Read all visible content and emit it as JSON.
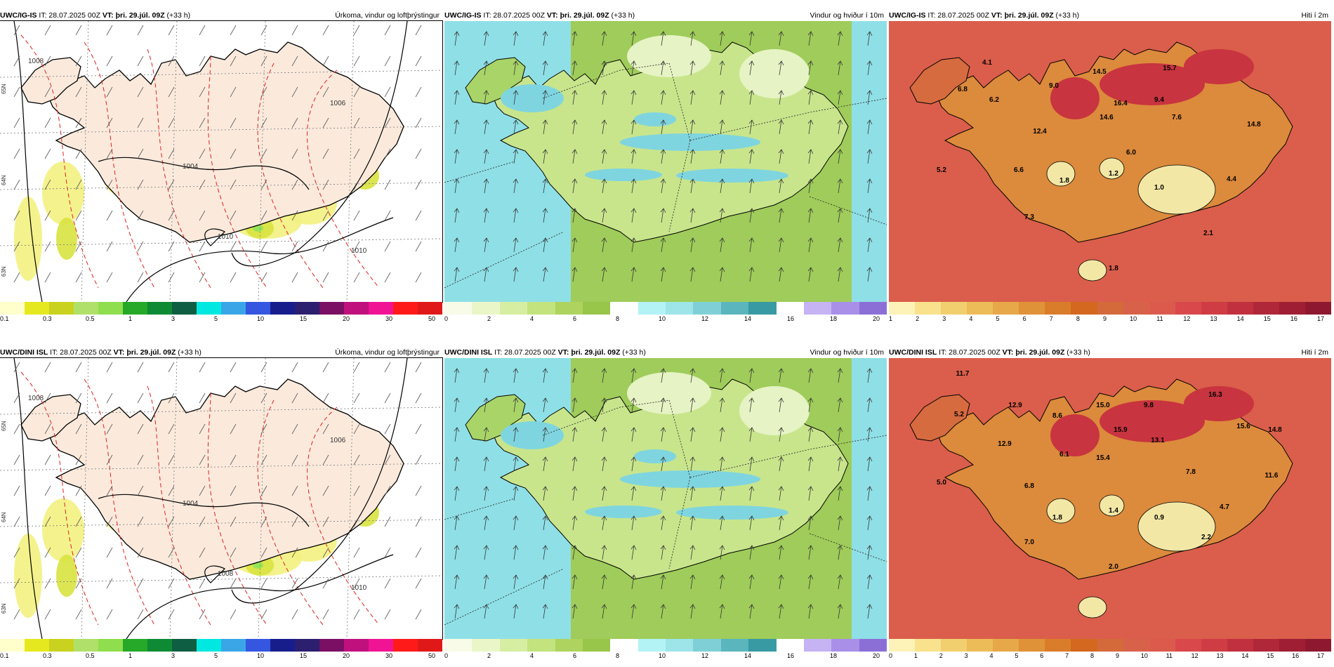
{
  "panels": [
    {
      "model": "UWC/IG-IS",
      "it": "IT: 28.07.2025 00Z",
      "vt_label": "VT:",
      "vt": "þri. 29.júl. 09Z",
      "lead": "(+33 h)",
      "title": "Úrkoma, vindur og loftþrýstingur",
      "type": "precip",
      "legend_colors": [
        "#ffffcc",
        "#e5e81f",
        "#c9d21e",
        "#b1e06a",
        "#8fde4e",
        "#26a828",
        "#0e8a34",
        "#0d5e42",
        "#00e8e0",
        "#3aa6e8",
        "#3456e0",
        "#171e8c",
        "#2c1f6f",
        "#7a0f63",
        "#c0107e",
        "#f01494",
        "#ff1a1a",
        "#e01818"
      ],
      "legend_labels": [
        "0.1",
        "0.3",
        "0.5",
        "1",
        "3",
        "5",
        "10",
        "15",
        "20",
        "30",
        "50"
      ],
      "isobars": [
        "1008",
        "1006",
        "1004",
        "1010",
        "1010"
      ],
      "lat_labels": [
        "65N",
        "64N",
        "63N"
      ]
    },
    {
      "model": "UWC/IG-IS",
      "it": "IT: 28.07.2025 00Z",
      "vt_label": "VT:",
      "vt": "þri. 29.júl. 09Z",
      "lead": "(+33 h)",
      "title": "Vindur og hviður í 10m",
      "type": "wind",
      "legend_colors": [
        "#f7fbe8",
        "#eaf6c8",
        "#d6eea1",
        "#c2e37e",
        "#aed45f",
        "#98c64a",
        "#ffffff",
        "#b3f3f6",
        "#9ee5ea",
        "#7fd0d6",
        "#5bb5bd",
        "#389aa3",
        "#ffffff",
        "#c5b3f3",
        "#a98fe8",
        "#8b6fd7"
      ],
      "legend_labels": [
        "0",
        "2",
        "4",
        "6",
        "8",
        "10",
        "12",
        "14",
        "16",
        "18",
        "20"
      ]
    },
    {
      "model": "UWC/IG-IS",
      "it": "IT: 28.07.2025 00Z",
      "vt_label": "VT:",
      "vt": "þri. 29.júl. 09Z",
      "lead": "(+33 h)",
      "title": "Hiti í 2m",
      "type": "temp",
      "legend_colors": [
        "#fdf3b8",
        "#f8e28d",
        "#f1cf6e",
        "#ecbc58",
        "#e6a848",
        "#e09238",
        "#da7d2a",
        "#d4681f",
        "#d46a3a",
        "#d86249",
        "#dc5a4c",
        "#d9484a",
        "#cf3c44",
        "#c1303f",
        "#b02739",
        "#a01e34",
        "#8d1830"
      ],
      "legend_labels": [
        "1",
        "2",
        "3",
        "4",
        "5",
        "6",
        "7",
        "8",
        "9",
        "10",
        "11",
        "12",
        "13",
        "14",
        "15",
        "16",
        "17"
      ],
      "labels": [
        "6.8",
        "4.1",
        "6.2",
        "9.0",
        "14.5",
        "15.7",
        "16.4",
        "9.4",
        "14.6",
        "12.4",
        "7.6",
        "14.8",
        "6.0",
        "5.2",
        "6.6",
        "1.8",
        "1.2",
        "1.0",
        "4.4",
        "7.3",
        "2.1",
        "1.8"
      ]
    },
    {
      "model": "UWC/DINI ISL",
      "it": "IT: 28.07.2025 00Z",
      "vt_label": "VT:",
      "vt": "þri. 29.júl. 09Z",
      "lead": "(+33 h)",
      "title": "Úrkoma, vindur og loftþrýstingur",
      "type": "precip",
      "legend_colors": [
        "#ffffcc",
        "#e5e81f",
        "#c9d21e",
        "#b1e06a",
        "#8fde4e",
        "#26a828",
        "#0e8a34",
        "#0d5e42",
        "#00e8e0",
        "#3aa6e8",
        "#3456e0",
        "#171e8c",
        "#2c1f6f",
        "#7a0f63",
        "#c0107e",
        "#f01494",
        "#ff1a1a",
        "#e01818"
      ],
      "legend_labels": [
        "0.1",
        "0.3",
        "0.5",
        "1",
        "3",
        "5",
        "10",
        "15",
        "20",
        "30",
        "50"
      ],
      "isobars": [
        "1008",
        "1006",
        "1004",
        "1010",
        "1008"
      ],
      "lat_labels": [
        "65N",
        "64N",
        "63N"
      ]
    },
    {
      "model": "UWC/DINI ISL",
      "it": "IT: 28.07.2025 00Z",
      "vt_label": "VT:",
      "vt": "þri. 29.júl. 09Z",
      "lead": "(+33 h)",
      "title": "Vindur og hviður í 10m",
      "type": "wind",
      "legend_colors": [
        "#f7fbe8",
        "#eaf6c8",
        "#d6eea1",
        "#c2e37e",
        "#aed45f",
        "#98c64a",
        "#ffffff",
        "#b3f3f6",
        "#9ee5ea",
        "#7fd0d6",
        "#5bb5bd",
        "#389aa3",
        "#ffffff",
        "#c5b3f3",
        "#a98fe8",
        "#8b6fd7"
      ],
      "legend_labels": [
        "0",
        "2",
        "4",
        "6",
        "8",
        "10",
        "12",
        "14",
        "16",
        "18",
        "20"
      ]
    },
    {
      "model": "UWC/DINI ISL",
      "it": "IT: 28.07.2025 00Z",
      "vt_label": "VT:",
      "vt": "þri. 29.júl. 09Z",
      "lead": "(+33 h)",
      "title": "Hiti í 2m",
      "type": "temp",
      "legend_colors": [
        "#fdf3b8",
        "#f8e28d",
        "#f1cf6e",
        "#ecbc58",
        "#e6a848",
        "#e09238",
        "#da7d2a",
        "#d4681f",
        "#d46a3a",
        "#d86249",
        "#dc5a4c",
        "#d9484a",
        "#cf3c44",
        "#c1303f",
        "#b02739",
        "#a01e34",
        "#8d1830"
      ],
      "legend_labels": [
        "0",
        "1",
        "2",
        "3",
        "4",
        "5",
        "6",
        "7",
        "8",
        "9",
        "10",
        "11",
        "12",
        "13",
        "14",
        "15",
        "16",
        "17"
      ],
      "labels": [
        "11.7",
        "5.2",
        "12.9",
        "8.6",
        "15.0",
        "9.8",
        "16.3",
        "15.6",
        "14.8",
        "15.9",
        "15.4",
        "13.1",
        "12.9",
        "6.1",
        "7.8",
        "11.6",
        "5.0",
        "6.8",
        "1.8",
        "1.4",
        "0.9",
        "4.7",
        "7.0",
        "2.2",
        "2.0"
      ]
    }
  ]
}
